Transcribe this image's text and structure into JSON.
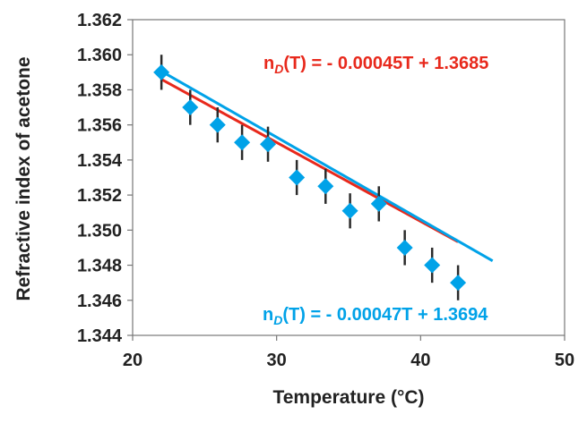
{
  "chart_data": {
    "type": "scatter",
    "title": "",
    "xlabel": "Temperature (°C)",
    "ylabel": "Refractive index of acetone",
    "xlim": [
      20,
      50
    ],
    "ylim": [
      1.344,
      1.362
    ],
    "xticks": [
      20,
      30,
      40,
      50
    ],
    "yticks": [
      1.344,
      1.346,
      1.348,
      1.35,
      1.352,
      1.354,
      1.356,
      1.358,
      1.36,
      1.362
    ],
    "ytick_labels": [
      "1.344",
      "1.346",
      "1.348",
      "1.350",
      "1.352",
      "1.354",
      "1.356",
      "1.358",
      "1.360",
      "1.362"
    ],
    "grid": false,
    "series": [
      {
        "name": "measured",
        "marker": "diamond",
        "color": "#00a2e8",
        "x": [
          22.0,
          24.0,
          25.9,
          27.6,
          29.4,
          31.4,
          33.4,
          35.1,
          37.1,
          38.9,
          40.8,
          42.6
        ],
        "y": [
          1.359,
          1.357,
          1.356,
          1.355,
          1.3549,
          1.353,
          1.3525,
          1.3511,
          1.3515,
          1.349,
          1.348,
          1.347
        ],
        "yerr": 0.001
      }
    ],
    "fits": [
      {
        "name": "fit-red",
        "color": "#e8291c",
        "slope": -0.00045,
        "intercept": 1.3685,
        "x_range": [
          22,
          42.6
        ],
        "label_main": "n",
        "label_sub": "D",
        "label_rest": "(T) = - 0.00045T + 1.3685"
      },
      {
        "name": "fit-blue",
        "color": "#00a2e8",
        "slope": -0.00047,
        "intercept": 1.3694,
        "x_range": [
          22,
          45
        ],
        "label_main": "n",
        "label_sub": "D",
        "label_rest": "(T) =  - 0.00047T + 1.3694"
      }
    ]
  }
}
